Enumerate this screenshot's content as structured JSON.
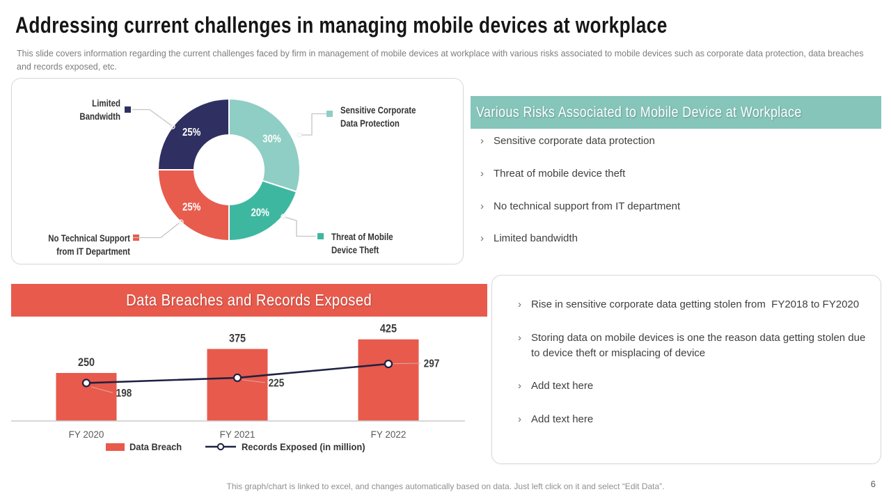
{
  "slide": {
    "title": "Addressing current challenges in managing mobile devices at workplace",
    "subtitle": "This slide covers information regarding the current challenges faced by firm in management of mobile devices at workplace with various risks associated to mobile devices such as corporate data protection, data breaches and records exposed, etc.",
    "footer_note": "This graph/chart is linked to excel, and changes automatically based on data. Just left click on it and select “Edit Data”.",
    "page_number": "6"
  },
  "ui": {
    "bullet": "›"
  },
  "risks_panel": {
    "header": "Various Risks Associated to Mobile Device at Workplace",
    "items": [
      "Sensitive corporate data protection",
      "Threat of mobile device theft",
      "No technical support from IT department",
      "Limited bandwidth"
    ]
  },
  "insights_panel": {
    "items": [
      "Rise in sensitive corporate data getting stolen from  FY2018 to FY2020",
      "Storing data on mobile devices is one the reason data getting stolen due to device theft or misplacing of device",
      "Add text here",
      "Add text here"
    ]
  },
  "colors": {
    "accent_red": "#e85a4c",
    "accent_teal": "#85c5ba",
    "slice_light_teal": "#8fcec4",
    "slice_teal": "#3eb7a0",
    "slice_coral": "#e85c4e",
    "slice_navy": "#2f3061",
    "line_navy": "#1e2142"
  },
  "chart_data": [
    {
      "type": "pie",
      "subtype": "donut",
      "labels": [
        "Sensitive Corporate Data Protection",
        "Threat of Mobile Device Theft",
        "No Technical Support from IT Department",
        "Limited Bandwidth"
      ],
      "values": [
        30,
        20,
        25,
        25
      ],
      "value_labels": [
        "30%",
        "20%",
        "25%",
        "25%"
      ],
      "colors": [
        "#8fcec4",
        "#3eb7a0",
        "#e85c4e",
        "#2f3061"
      ],
      "start_angle_deg": 0,
      "direction": "clockwise",
      "legend_position": "callouts"
    },
    {
      "type": "bar",
      "title": "Data Breaches and Records Exposed",
      "categories": [
        "FY 2020",
        "FY 2021",
        "FY 2022"
      ],
      "series": [
        {
          "name": "Data Breach",
          "type": "bar",
          "color": "#e85a4c",
          "values": [
            250,
            375,
            425
          ]
        },
        {
          "name": "Records Exposed (in million)",
          "type": "line",
          "color": "#1e2142",
          "values": [
            198,
            225,
            297
          ]
        }
      ],
      "ylim": [
        0,
        500
      ],
      "grid": false,
      "legend_position": "bottom"
    }
  ]
}
